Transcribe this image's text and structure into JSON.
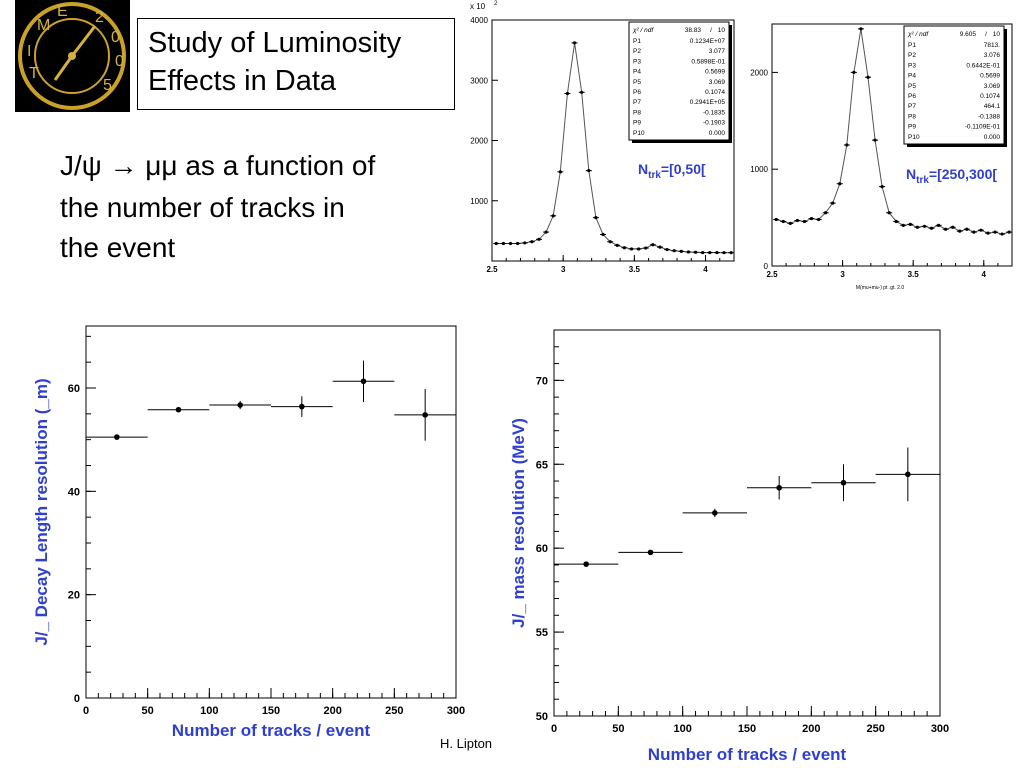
{
  "slide": {
    "title_line1": "Study of Luminosity",
    "title_line2": "Effects in Data",
    "description_lines": [
      "J/ψ → μμ as a function of",
      "the number of tracks in",
      "the event"
    ],
    "footer": "H. Lipton",
    "logo": {
      "letters": [
        "T",
        "I",
        "M",
        "E",
        "2",
        "0",
        "0",
        "5"
      ],
      "icon": "clock-logo-icon"
    }
  },
  "chart_data": [
    {
      "type": "scatter",
      "panel": "top-left",
      "exponent_label": "x 10",
      "exponent_sup": "2",
      "label": "N",
      "label_sub": "trk",
      "label_range": "=[0,50[",
      "label_color": "#2f3fd0",
      "xlim": [
        2.5,
        4.2
      ],
      "ylim": [
        0,
        4000
      ],
      "xticks": [
        "2.5",
        "3",
        "3.5",
        "4"
      ],
      "yticks": [
        "1000",
        "2000",
        "3000",
        "4000"
      ],
      "stats_header": [
        "χ² / ndf",
        "38.83",
        "/",
        "10"
      ],
      "stats": [
        [
          "P1",
          "0.1234E+07"
        ],
        [
          "P2",
          "3.077"
        ],
        [
          "P3",
          "0.5898E-01"
        ],
        [
          "P4",
          "0.5699"
        ],
        [
          "P5",
          "3.069"
        ],
        [
          "P6",
          "0.1074"
        ],
        [
          "P7",
          "0.2941E+05"
        ],
        [
          "P8",
          "-0.1835"
        ],
        [
          "P9",
          "-0.1903"
        ],
        [
          "P10",
          "0.000"
        ]
      ],
      "points": {
        "x": [
          2.53,
          2.58,
          2.63,
          2.68,
          2.73,
          2.78,
          2.83,
          2.88,
          2.93,
          2.98,
          3.03,
          3.08,
          3.13,
          3.18,
          3.23,
          3.28,
          3.33,
          3.38,
          3.43,
          3.48,
          3.53,
          3.58,
          3.63,
          3.68,
          3.73,
          3.78,
          3.83,
          3.88,
          3.93,
          3.98,
          4.03,
          4.08,
          4.13,
          4.18
        ],
        "y": [
          290,
          290,
          290,
          290,
          300,
          320,
          360,
          480,
          750,
          1480,
          2780,
          3620,
          2800,
          1500,
          720,
          440,
          320,
          260,
          220,
          200,
          200,
          215,
          270,
          230,
          190,
          170,
          160,
          150,
          145,
          140,
          140,
          140,
          138,
          138
        ]
      }
    },
    {
      "type": "scatter",
      "panel": "top-right",
      "label": "N",
      "label_sub": "trk",
      "label_range": "=[250,300[",
      "label_color": "#2f3fd0",
      "xlabel": "M(mu+mu-) pt .gt. 2.0",
      "xlim": [
        2.5,
        4.2
      ],
      "ylim": [
        0,
        2500
      ],
      "xticks": [
        "2.5",
        "3",
        "3.5",
        "4"
      ],
      "yticks": [
        "0",
        "1000",
        "2000"
      ],
      "stats_header": [
        "χ² / ndf",
        "9.605",
        "/",
        "10"
      ],
      "stats": [
        [
          "P1",
          "7813."
        ],
        [
          "P2",
          "3.076"
        ],
        [
          "P3",
          "0.6442E-01"
        ],
        [
          "P4",
          "0.5699"
        ],
        [
          "P5",
          "3.069"
        ],
        [
          "P6",
          "0.1074"
        ],
        [
          "P7",
          "464.1"
        ],
        [
          "P8",
          "-0.1388"
        ],
        [
          "P9",
          "-0.1109E-01"
        ],
        [
          "P10",
          "0.000"
        ]
      ],
      "points": {
        "x": [
          2.53,
          2.58,
          2.63,
          2.68,
          2.73,
          2.78,
          2.83,
          2.88,
          2.93,
          2.98,
          3.03,
          3.08,
          3.13,
          3.18,
          3.23,
          3.28,
          3.33,
          3.38,
          3.43,
          3.48,
          3.53,
          3.58,
          3.63,
          3.68,
          3.73,
          3.78,
          3.83,
          3.88,
          3.93,
          3.98,
          4.03,
          4.08,
          4.13,
          4.18
        ],
        "y": [
          480,
          460,
          440,
          470,
          460,
          490,
          480,
          550,
          650,
          850,
          1250,
          2000,
          2450,
          1950,
          1300,
          820,
          550,
          460,
          420,
          430,
          400,
          410,
          390,
          420,
          380,
          400,
          360,
          380,
          350,
          370,
          340,
          350,
          330,
          350
        ]
      }
    },
    {
      "type": "scatter",
      "panel": "bottom-left",
      "xlabel": "Number of tracks / event",
      "ylabel": "J/_ Decay Length resolution (_m)",
      "label_color": "#2f3fd0",
      "xlim": [
        0,
        300
      ],
      "ylim": [
        0,
        72
      ],
      "xticks": [
        "0",
        "50",
        "100",
        "150",
        "200",
        "250",
        "300"
      ],
      "yticks": [
        "0",
        "20",
        "40",
        "60"
      ],
      "points": [
        {
          "x": 25,
          "y": 50.5,
          "err": 0.3
        },
        {
          "x": 75,
          "y": 55.8,
          "err": 0.3
        },
        {
          "x": 125,
          "y": 56.7,
          "err": 0.8
        },
        {
          "x": 175,
          "y": 56.4,
          "err": 2.0
        },
        {
          "x": 225,
          "y": 61.3,
          "err": 4.0
        },
        {
          "x": 275,
          "y": 54.8,
          "err": 5.0
        }
      ]
    },
    {
      "type": "scatter",
      "panel": "bottom-right",
      "xlabel": "Number of tracks / event",
      "ylabel": "J/_ mass resolution (MeV)",
      "label_color": "#2f3fd0",
      "xlim": [
        0,
        300
      ],
      "ylim": [
        50,
        73
      ],
      "xticks": [
        "0",
        "50",
        "100",
        "150",
        "200",
        "250",
        "300"
      ],
      "yticks": [
        "50",
        "55",
        "60",
        "65",
        "70"
      ],
      "points": [
        {
          "x": 25,
          "y": 59.05,
          "err": 0.1
        },
        {
          "x": 75,
          "y": 59.75,
          "err": 0.1
        },
        {
          "x": 125,
          "y": 62.1,
          "err": 0.25
        },
        {
          "x": 175,
          "y": 63.6,
          "err": 0.7
        },
        {
          "x": 225,
          "y": 63.9,
          "err": 1.1
        },
        {
          "x": 275,
          "y": 64.4,
          "err": 1.6
        }
      ]
    }
  ]
}
